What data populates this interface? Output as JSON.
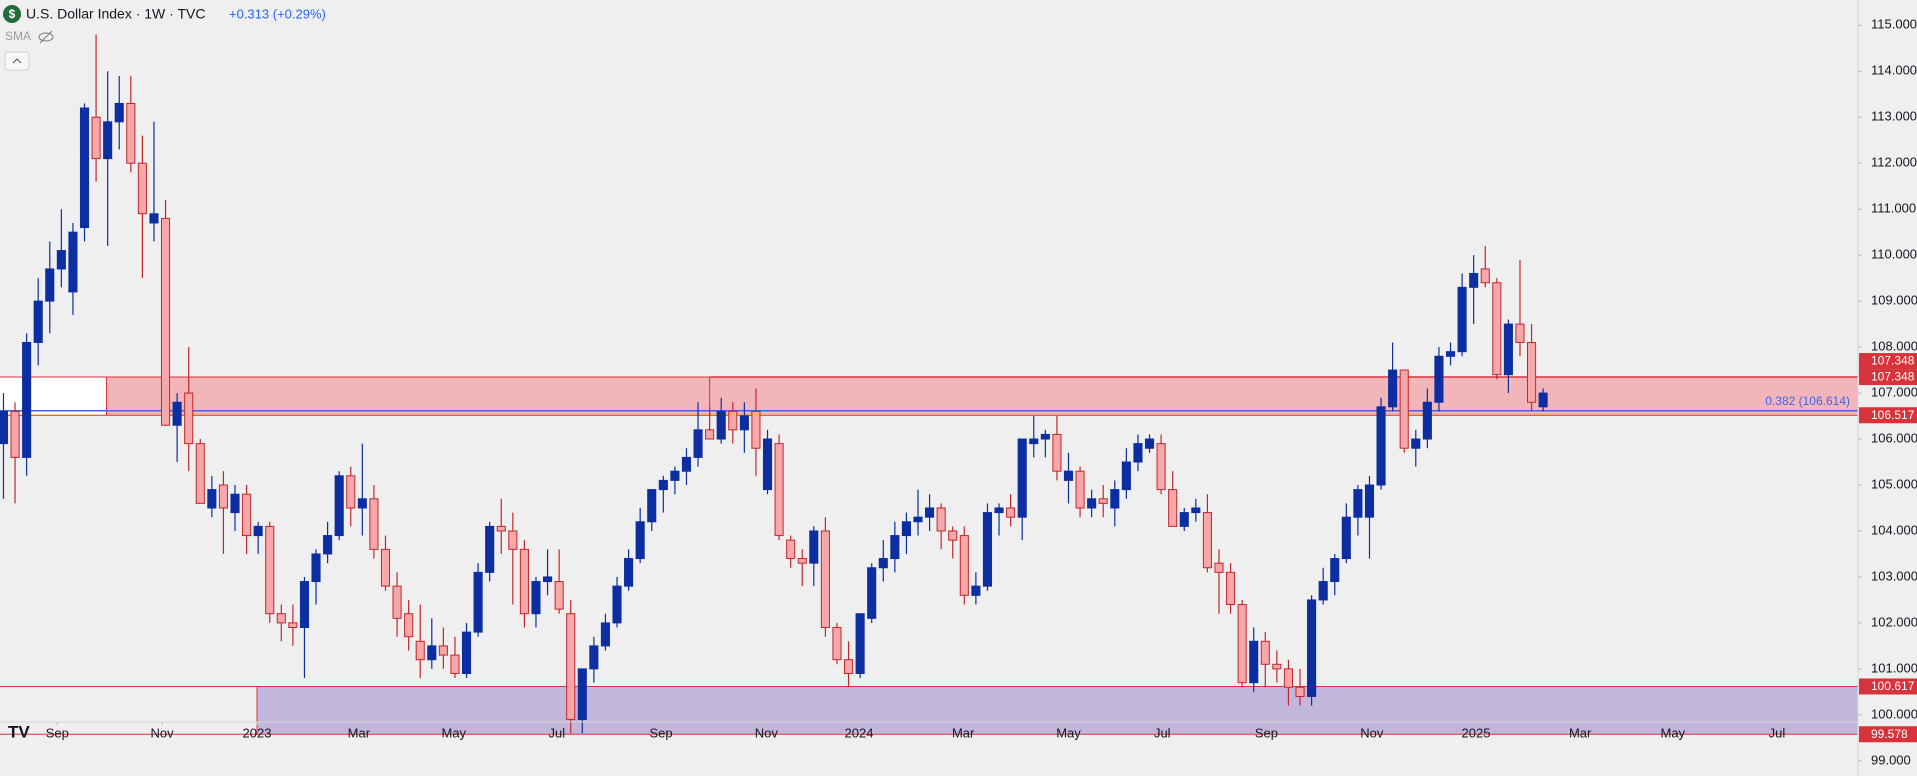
{
  "chart_data": {
    "type": "candlestick",
    "title": "U.S. Dollar Index · 1W · TVC",
    "change": "+0.313 (+0.29%)",
    "indicator": "SMA",
    "up_color": "#0c2ea0",
    "down_color": "#f5a7a9",
    "down_border": "#c3272b",
    "grid": false,
    "categories": [
      null,
      null,
      null,
      null,
      null,
      null,
      null,
      null,
      null,
      null,
      null,
      null,
      null,
      null,
      null,
      null,
      null,
      null,
      null,
      null,
      null,
      null,
      null,
      null,
      null,
      null,
      null,
      null,
      null,
      null,
      null,
      null,
      null,
      null,
      null,
      null,
      null,
      null,
      null,
      null,
      null,
      null,
      null,
      null,
      null,
      null,
      null,
      null,
      null,
      null,
      null,
      null,
      null,
      null,
      null,
      null,
      null,
      null,
      null,
      null,
      null,
      null,
      null,
      null,
      null,
      null,
      null,
      null,
      null,
      null,
      null,
      null,
      null,
      null,
      null,
      null,
      null,
      null,
      null,
      null,
      null,
      null,
      null,
      null,
      null,
      null,
      null,
      null,
      null,
      null,
      null,
      null,
      null,
      null,
      null,
      null,
      null,
      null,
      null,
      null,
      null,
      null,
      null,
      null,
      null,
      null,
      null,
      null,
      null,
      null,
      null,
      null,
      null,
      null,
      null,
      null,
      null,
      null,
      null,
      null,
      null,
      null,
      null,
      null,
      null,
      null,
      null,
      null,
      null,
      null,
      null,
      null,
      null,
      null
    ],
    "open": [
      105.9,
      106.6,
      105.6,
      108.1,
      109.0,
      109.7,
      109.2,
      110.6,
      113.0,
      112.1,
      112.9,
      113.3,
      112.0,
      110.7,
      110.8,
      106.3,
      107.0,
      105.9,
      104.5,
      105.0,
      104.4,
      104.8,
      103.9,
      104.1,
      102.2,
      102.0,
      101.9,
      102.9,
      103.5,
      103.9,
      105.2,
      104.5,
      104.7,
      103.6,
      102.8,
      102.2,
      101.6,
      101.2,
      101.5,
      101.3,
      100.9,
      101.8,
      103.1,
      104.1,
      104.0,
      103.6,
      102.2,
      102.9,
      102.9,
      102.2,
      99.9,
      101.0,
      101.5,
      102.0,
      102.8,
      103.4,
      104.2,
      104.9,
      105.1,
      105.3,
      105.6,
      106.2,
      106.0,
      106.6,
      106.2,
      106.6,
      104.9,
      105.9,
      103.8,
      103.4,
      103.3,
      104.0,
      101.9,
      101.2,
      100.9,
      102.1,
      103.2,
      103.4,
      103.9,
      104.2,
      104.3,
      104.5,
      104.0,
      103.9,
      102.6,
      102.8,
      104.4,
      104.5,
      104.3,
      105.9,
      106.0,
      106.1,
      105.1,
      105.3,
      104.5,
      104.7,
      104.5,
      104.9,
      105.5,
      105.8,
      105.9,
      104.9,
      104.1,
      104.4,
      104.4,
      103.3,
      103.1,
      102.4,
      100.7,
      101.6,
      101.1,
      101.0,
      100.6,
      100.4,
      102.5,
      102.9,
      103.4,
      104.3,
      104.3,
      105.0,
      106.7,
      107.5,
      105.8,
      106.0,
      106.8,
      107.8,
      107.9,
      109.3,
      109.7,
      109.4,
      107.4,
      108.5,
      108.1,
      106.7
    ],
    "high": [
      107.0,
      106.8,
      108.3,
      109.5,
      110.3,
      111.0,
      110.7,
      113.3,
      114.8,
      114.0,
      113.9,
      113.9,
      112.6,
      112.9,
      111.2,
      107.0,
      108.0,
      106.0,
      105.2,
      105.3,
      105.0,
      105.0,
      104.2,
      104.2,
      102.4,
      102.4,
      103.0,
      103.6,
      104.2,
      105.3,
      105.4,
      105.9,
      105.0,
      103.9,
      103.1,
      102.5,
      102.4,
      102.1,
      101.9,
      101.7,
      102.0,
      103.3,
      104.2,
      104.7,
      104.4,
      103.8,
      103.0,
      103.6,
      103.6,
      102.5,
      101.0,
      101.7,
      102.2,
      103.0,
      103.6,
      104.5,
      104.9,
      105.2,
      105.4,
      105.8,
      106.8,
      106.7,
      106.9,
      106.8,
      106.8,
      107.1,
      106.2,
      106.1,
      103.9,
      103.6,
      104.1,
      104.3,
      102.0,
      101.6,
      102.2,
      103.3,
      103.8,
      104.2,
      104.4,
      104.9,
      104.8,
      104.6,
      104.1,
      104.1,
      103.1,
      104.6,
      104.6,
      104.8,
      106.0,
      106.5,
      106.2,
      106.5,
      105.7,
      105.4,
      104.9,
      105.0,
      105.1,
      105.8,
      106.1,
      106.1,
      106.1,
      105.3,
      104.5,
      104.7,
      104.8,
      103.6,
      103.3,
      102.5,
      101.9,
      101.8,
      101.4,
      101.2,
      101.0,
      102.6,
      103.2,
      103.5,
      104.6,
      105.0,
      105.2,
      106.9,
      108.1,
      107.5,
      106.2,
      107.1,
      108.0,
      108.1,
      109.6,
      110.0,
      110.2,
      109.5,
      108.6,
      109.9,
      108.5,
      107.1
    ],
    "low": [
      104.7,
      104.6,
      105.2,
      107.6,
      108.3,
      109.3,
      108.7,
      110.3,
      111.6,
      110.2,
      112.3,
      111.8,
      109.5,
      110.3,
      106.3,
      105.5,
      105.3,
      104.6,
      104.3,
      103.5,
      104.0,
      103.5,
      103.5,
      102.0,
      101.6,
      101.5,
      100.8,
      102.4,
      103.3,
      103.8,
      104.1,
      103.9,
      103.4,
      102.7,
      101.7,
      101.4,
      100.8,
      101.0,
      101.0,
      100.8,
      100.8,
      101.7,
      102.9,
      103.5,
      102.4,
      101.9,
      101.9,
      102.6,
      102.2,
      99.6,
      99.6,
      100.7,
      101.4,
      101.9,
      102.7,
      103.3,
      104.0,
      104.4,
      104.8,
      105.0,
      105.4,
      106.0,
      105.9,
      105.9,
      105.7,
      105.2,
      104.8,
      103.8,
      103.2,
      102.8,
      102.8,
      101.7,
      101.1,
      100.6,
      100.8,
      102.0,
      102.9,
      103.1,
      103.5,
      103.9,
      104.0,
      103.6,
      103.4,
      102.4,
      102.4,
      102.7,
      103.9,
      104.1,
      103.8,
      105.6,
      105.6,
      105.1,
      104.6,
      104.3,
      104.3,
      104.3,
      104.1,
      104.7,
      105.3,
      105.7,
      104.8,
      104.1,
      104.0,
      104.2,
      103.1,
      102.2,
      102.2,
      100.6,
      100.5,
      100.6,
      100.7,
      100.2,
      100.2,
      100.2,
      102.4,
      102.6,
      103.3,
      103.9,
      103.4,
      104.9,
      106.6,
      105.7,
      105.4,
      105.8,
      106.6,
      107.6,
      107.8,
      108.5,
      109.3,
      107.3,
      107.0,
      107.8,
      106.6,
      106.6
    ],
    "close": [
      106.6,
      105.6,
      108.1,
      109.0,
      109.7,
      110.1,
      110.5,
      113.2,
      112.1,
      112.9,
      113.3,
      112.0,
      110.9,
      110.9,
      106.3,
      106.8,
      105.9,
      104.6,
      104.9,
      104.5,
      104.8,
      103.9,
      104.1,
      102.2,
      102.0,
      101.9,
      102.9,
      103.5,
      103.9,
      105.2,
      104.5,
      104.7,
      103.6,
      102.8,
      102.1,
      101.7,
      101.2,
      101.5,
      101.3,
      100.9,
      101.8,
      103.1,
      104.1,
      104.0,
      103.6,
      102.2,
      102.9,
      103.0,
      102.3,
      99.9,
      101.0,
      101.5,
      102.0,
      102.8,
      103.4,
      104.2,
      104.9,
      105.1,
      105.3,
      105.6,
      106.2,
      106.0,
      106.6,
      106.2,
      106.5,
      105.8,
      106.0,
      103.9,
      103.4,
      103.3,
      104.0,
      101.9,
      101.2,
      100.9,
      102.2,
      103.2,
      103.4,
      103.9,
      104.2,
      104.3,
      104.5,
      104.0,
      103.8,
      102.6,
      102.8,
      104.4,
      104.5,
      104.3,
      106.0,
      106.0,
      106.1,
      105.3,
      105.3,
      104.5,
      104.7,
      104.6,
      104.9,
      105.5,
      105.9,
      106.0,
      104.9,
      104.1,
      104.4,
      104.5,
      103.2,
      103.1,
      102.4,
      100.7,
      101.6,
      101.1,
      101.0,
      100.6,
      100.4,
      102.5,
      102.9,
      103.4,
      104.3,
      104.9,
      105.0,
      106.7,
      107.5,
      105.8,
      106.0,
      106.8,
      107.8,
      107.9,
      109.3,
      109.6,
      109.4,
      107.4,
      108.5,
      108.1,
      106.8,
      107.0
    ],
    "xlim": [
      -0.3,
      160.2
    ],
    "xticks": [
      {
        "value": 4.65,
        "label": "Sep"
      },
      {
        "value": 13.7,
        "label": "Nov"
      },
      {
        "value": 21.9,
        "label": "2023"
      },
      {
        "value": 30.7,
        "label": "Mar"
      },
      {
        "value": 38.9,
        "label": "May"
      },
      {
        "value": 47.8,
        "label": "Jul"
      },
      {
        "value": 56.8,
        "label": "Sep"
      },
      {
        "value": 65.9,
        "label": "Nov"
      },
      {
        "value": 73.9,
        "label": "2024"
      },
      {
        "value": 82.9,
        "label": "Mar"
      },
      {
        "value": 92.0,
        "label": "May"
      },
      {
        "value": 100.1,
        "label": "Jul"
      },
      {
        "value": 109.1,
        "label": "Sep"
      },
      {
        "value": 118.2,
        "label": "Nov"
      },
      {
        "value": 127.2,
        "label": "2025"
      },
      {
        "value": 136.2,
        "label": "Mar"
      },
      {
        "value": 144.2,
        "label": "May"
      },
      {
        "value": 153.2,
        "label": "Jul"
      }
    ],
    "ylim": [
      98.67,
      115.55
    ],
    "yticks": [
      {
        "value": 99,
        "label": "99.000"
      },
      {
        "value": 100,
        "label": "100.000"
      },
      {
        "value": 101,
        "label": "101.000"
      },
      {
        "value": 102,
        "label": "102.000"
      },
      {
        "value": 103,
        "label": "103.000"
      },
      {
        "value": 104,
        "label": "104.000"
      },
      {
        "value": 105,
        "label": "105.000"
      },
      {
        "value": 106,
        "label": "106.000"
      },
      {
        "value": 107,
        "label": "107.000"
      },
      {
        "value": 108,
        "label": "108.000"
      },
      {
        "value": 109,
        "label": "109.000"
      },
      {
        "value": 110,
        "label": "110.000"
      },
      {
        "value": 111,
        "label": "111.000"
      },
      {
        "value": 112,
        "label": "112.000"
      },
      {
        "value": 113,
        "label": "113.000"
      },
      {
        "value": 114,
        "label": "114.000"
      },
      {
        "value": 115,
        "label": "115.000"
      }
    ],
    "zones": [
      {
        "high": {
          "value": 107.348,
          "label": "107.348"
        },
        "low": {
          "value": 106.517,
          "label": "106.517"
        },
        "start": 8.9,
        "color": "#f2b6ba",
        "border": "#d8333a",
        "left_fill": "#ffffff"
      },
      {
        "high": {
          "value": 100.617,
          "label": "100.617"
        },
        "low": {
          "value": 99.578,
          "label": "99.578"
        },
        "start": 21.9,
        "color": "#c3b6dc",
        "border": "#d8333a"
      }
    ],
    "hlines": [
      {
        "value": 107.348,
        "label": "107.348",
        "start": 61,
        "color": "#d8333a"
      }
    ],
    "fib": {
      "value": 106.614,
      "label": "0.382 (106.614)",
      "color": "#3f63e6"
    }
  }
}
